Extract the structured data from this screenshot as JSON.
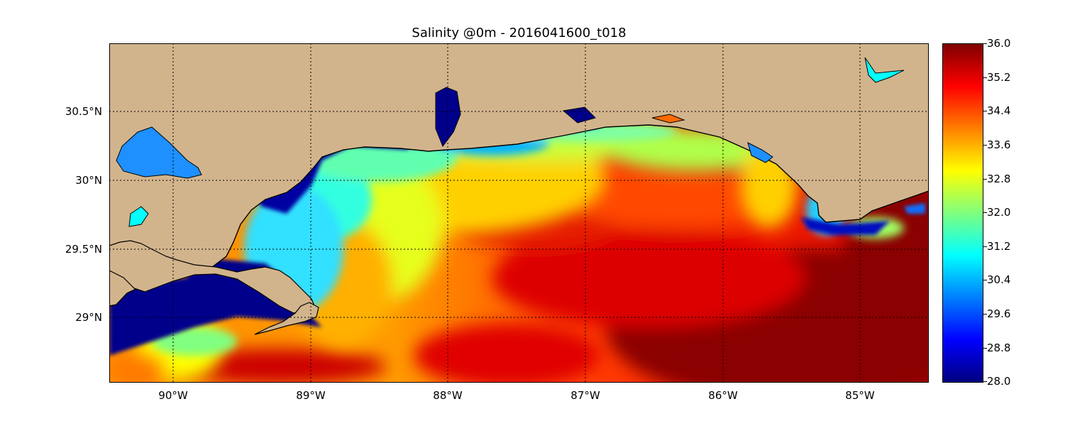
{
  "title": "Salinity @0m - 2016041600_t018",
  "map": {
    "lat_labels": [
      "30.5°N",
      "30°N",
      "29.5°N",
      "29°N"
    ],
    "lon_labels": [
      "90°W",
      "89°W",
      "88°W",
      "87°W",
      "86°W",
      "85°W"
    ],
    "land_color": "#d2b48c",
    "colormap": "jet"
  },
  "colorbar": {
    "ticks": [
      "36.0",
      "35.2",
      "34.4",
      "33.6",
      "32.8",
      "32.0",
      "31.2",
      "30.4",
      "29.6",
      "28.8",
      "28.0"
    ],
    "min": 28.0,
    "max": 36.0
  }
}
